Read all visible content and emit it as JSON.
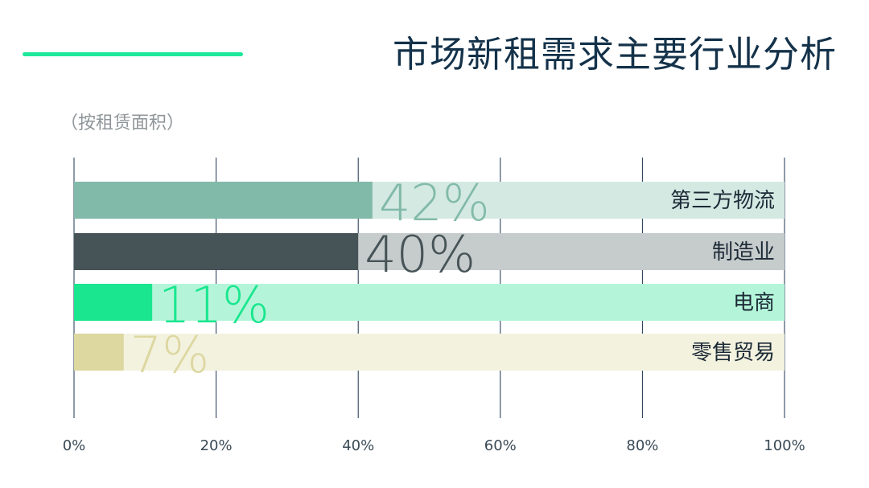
{
  "header": {
    "title": "市场新租需求主要行业分析",
    "subtitle": "（按租赁面积）",
    "accent_color": "#1de89a"
  },
  "chart_data": {
    "type": "bar",
    "orientation": "horizontal",
    "title": "市场新租需求主要行业分析",
    "subtitle": "（按租赁面积）",
    "categories": [
      "第三方物流",
      "制造业",
      "电商",
      "零售贸易"
    ],
    "values": [
      42,
      40,
      11,
      7
    ],
    "value_labels": [
      "42%",
      "40%",
      "11%",
      "7%"
    ],
    "bar_colors": [
      "#82baa9",
      "#465357",
      "#19e68e",
      "#ddd7a0"
    ],
    "track_colors": [
      "#d5e9e3",
      "#c6cbcc",
      "#b4f5d9",
      "#f3f2df"
    ],
    "value_label_colors": [
      "#82baa9",
      "#465357",
      "#19e68e",
      "#ddd7a0"
    ],
    "xlim": [
      0,
      100
    ],
    "x_ticks": [
      0,
      20,
      40,
      60,
      80,
      100
    ],
    "x_tick_labels": [
      "0%",
      "20%",
      "40%",
      "60%",
      "80%",
      "100%"
    ],
    "grid": true,
    "gridline_color": "#1b3450",
    "legend": "none"
  }
}
